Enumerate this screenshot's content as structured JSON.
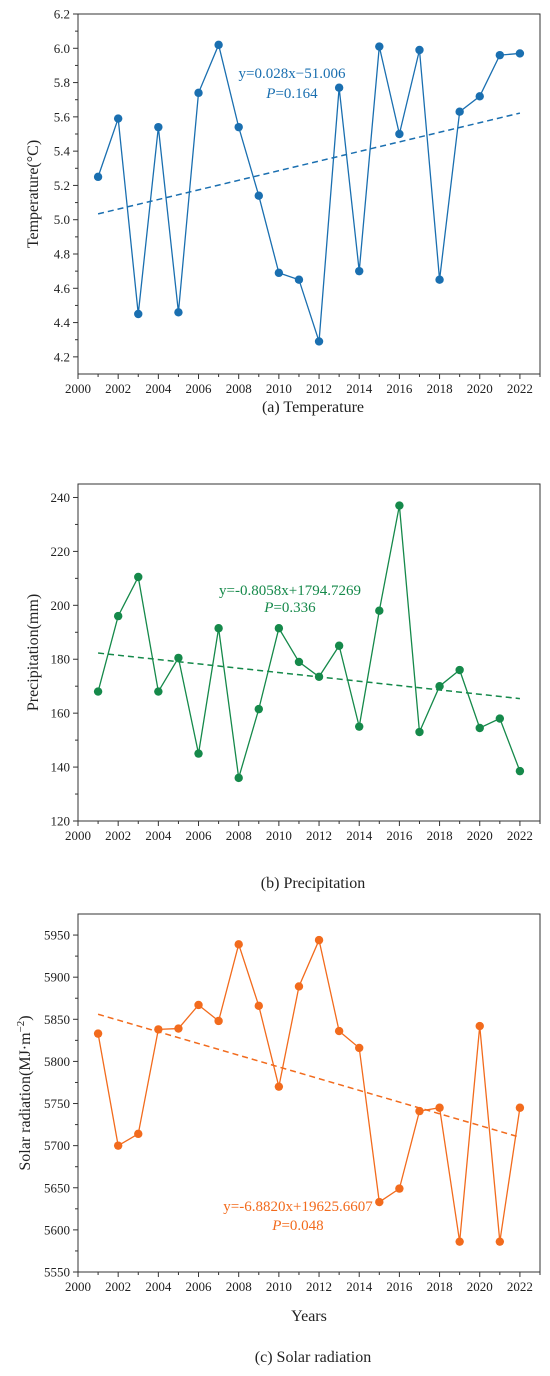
{
  "chart_data": [
    {
      "type": "line",
      "caption": "(a) Temperature",
      "ylabel": "Temperature(°C)",
      "xlabel": "",
      "color": "#1a6fb0",
      "x": [
        2001,
        2002,
        2003,
        2004,
        2005,
        2006,
        2007,
        2008,
        2009,
        2010,
        2011,
        2012,
        2013,
        2014,
        2015,
        2016,
        2017,
        2018,
        2019,
        2020,
        2021,
        2022
      ],
      "series": [
        {
          "values": [
            5.25,
            5.59,
            4.45,
            5.54,
            4.46,
            5.74,
            6.02,
            5.54,
            5.14,
            4.69,
            4.65,
            4.29,
            5.77,
            4.7,
            6.01,
            5.5,
            5.99,
            4.65,
            5.63,
            5.72,
            5.96,
            5.97
          ]
        }
      ],
      "trend": {
        "from": [
          2001,
          5.034
        ],
        "to": [
          2022,
          5.622
        ],
        "equation": "y=0.028x−51.006",
        "p_label": "P",
        "p_value": "=0.164"
      },
      "xlim": [
        2000,
        2023
      ],
      "ylim": [
        4.1,
        6.2
      ],
      "yticks": [
        4.2,
        4.4,
        4.6,
        4.8,
        5.0,
        5.2,
        5.4,
        5.6,
        5.8,
        6.0,
        6.2
      ],
      "ytick_labels": [
        "4.2",
        "4.4",
        "4.6",
        "4.8",
        "5.0",
        "5.2",
        "5.4",
        "5.6",
        "5.8",
        "6.0",
        "6.2"
      ],
      "xticks": [
        2000,
        2002,
        2004,
        2006,
        2008,
        2010,
        2012,
        2014,
        2016,
        2018,
        2020,
        2022
      ],
      "xtick_labels": [
        "2000",
        "2002",
        "2004",
        "2006",
        "2008",
        "2010",
        "2012",
        "2014",
        "2016",
        "2018",
        "2020",
        "2022"
      ],
      "grid": false,
      "legend": "none"
    },
    {
      "type": "line",
      "caption": "(b) Precipitation",
      "ylabel": "Precipitation(mm)",
      "xlabel": "",
      "color": "#15894a",
      "x": [
        2001,
        2002,
        2003,
        2004,
        2005,
        2006,
        2007,
        2008,
        2009,
        2010,
        2011,
        2012,
        2013,
        2014,
        2015,
        2016,
        2017,
        2018,
        2019,
        2020,
        2021,
        2022
      ],
      "series": [
        {
          "values": [
            168,
            196,
            210.5,
            168,
            180.5,
            145,
            191.5,
            136,
            161.5,
            191.5,
            179,
            173.5,
            185,
            155,
            198,
            237,
            153,
            170,
            176,
            154.5,
            158,
            138.5
          ]
        }
      ],
      "trend": {
        "from": [
          2001,
          182.3
        ],
        "to": [
          2022,
          165.4
        ],
        "equation": "y=-0.8058x+1794.7269",
        "p_label": "P",
        "p_value": "=0.336"
      },
      "xlim": [
        2000,
        2023
      ],
      "ylim": [
        120,
        245
      ],
      "yticks": [
        120,
        140,
        160,
        180,
        200,
        220,
        240
      ],
      "ytick_labels": [
        "120",
        "140",
        "160",
        "180",
        "200",
        "220",
        "240"
      ],
      "xticks": [
        2000,
        2002,
        2004,
        2006,
        2008,
        2010,
        2012,
        2014,
        2016,
        2018,
        2020,
        2022
      ],
      "xtick_labels": [
        "2000",
        "2002",
        "2004",
        "2006",
        "2008",
        "2010",
        "2012",
        "2014",
        "2016",
        "2018",
        "2020",
        "2022"
      ],
      "grid": false,
      "legend": "none"
    },
    {
      "type": "line",
      "caption": "(c) Solar radiation",
      "ylabel": "Solar radiation(MJ·m",
      "ylabel_sup": "−2",
      "ylabel_end": ")",
      "xlabel": "Years",
      "color": "#f26b1d",
      "x": [
        2001,
        2002,
        2003,
        2004,
        2005,
        2006,
        2007,
        2008,
        2009,
        2010,
        2011,
        2012,
        2013,
        2014,
        2015,
        2016,
        2017,
        2018,
        2019,
        2020,
        2021,
        2022
      ],
      "series": [
        {
          "values": [
            5833,
            5700,
            5714,
            5838,
            5839,
            5867,
            5848,
            5939,
            5866,
            5770,
            5889,
            5944,
            5836,
            5816,
            5633,
            5649,
            5741,
            5745,
            5586,
            5842,
            5586,
            5745
          ]
        }
      ],
      "trend": {
        "from": [
          2001,
          5856
        ],
        "to": [
          2022,
          5710
        ],
        "equation": "y=-6.8820x+19625.6607",
        "p_label": "P",
        "p_value": "=0.048"
      },
      "xlim": [
        2000,
        2023
      ],
      "ylim": [
        5550,
        5975
      ],
      "yticks": [
        5550,
        5600,
        5650,
        5700,
        5750,
        5800,
        5850,
        5900,
        5950
      ],
      "ytick_labels": [
        "5550",
        "5600",
        "5650",
        "5700",
        "5750",
        "5800",
        "5850",
        "5900",
        "5950"
      ],
      "xticks": [
        2000,
        2002,
        2004,
        2006,
        2008,
        2010,
        2012,
        2014,
        2016,
        2018,
        2020,
        2022
      ],
      "xtick_labels": [
        "2000",
        "2002",
        "2004",
        "2006",
        "2008",
        "2010",
        "2012",
        "2014",
        "2016",
        "2018",
        "2020",
        "2022"
      ],
      "grid": false,
      "legend": "none"
    }
  ]
}
